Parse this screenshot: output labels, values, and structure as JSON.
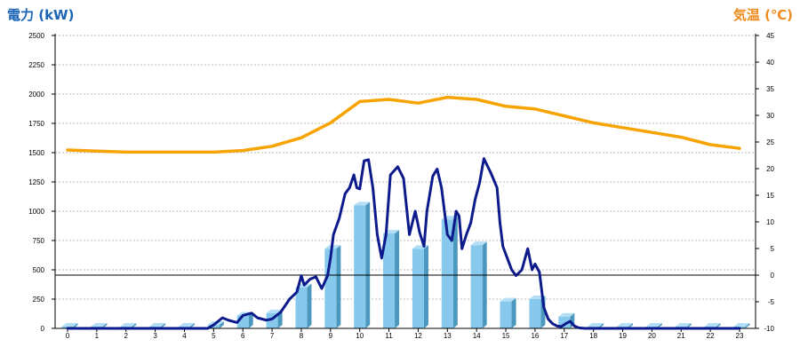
{
  "titles": {
    "left_axis": "電力 (kW)",
    "right_axis": "気温 (℃)"
  },
  "chart_data": {
    "type": "bar",
    "grid": true,
    "x": {
      "categories": [
        "0",
        "1",
        "2",
        "3",
        "4",
        "5",
        "6",
        "7",
        "8",
        "9",
        "10",
        "11",
        "12",
        "13",
        "14",
        "15",
        "16",
        "17",
        "18",
        "19",
        "20",
        "21",
        "22",
        "23"
      ]
    },
    "y_left": {
      "ylim": [
        0,
        2500
      ],
      "ticks": [
        0,
        250,
        500,
        750,
        1000,
        1250,
        1500,
        1750,
        2000,
        2250,
        2500
      ]
    },
    "y_right": {
      "ylim": [
        -10,
        45
      ],
      "ticks": [
        -10,
        -5,
        0,
        5,
        10,
        15,
        20,
        25,
        30,
        35,
        40,
        45
      ]
    },
    "hourly_bars": {
      "values": [
        0,
        0,
        0,
        0,
        0,
        30,
        110,
        130,
        350,
        680,
        1050,
        810,
        680,
        930,
        710,
        230,
        250,
        100,
        0,
        0,
        0,
        0,
        0,
        0
      ],
      "colors": {
        "front": "#86c9ec",
        "side": "#4b97bd",
        "top": "#b4def5"
      }
    },
    "power_line": {
      "color": "#0d1a8c",
      "points": [
        [
          0,
          0
        ],
        [
          1,
          0
        ],
        [
          2,
          0
        ],
        [
          3,
          0
        ],
        [
          4,
          0
        ],
        [
          4.8,
          0
        ],
        [
          5.0,
          30
        ],
        [
          5.3,
          90
        ],
        [
          5.5,
          70
        ],
        [
          5.8,
          50
        ],
        [
          6.0,
          110
        ],
        [
          6.3,
          130
        ],
        [
          6.5,
          90
        ],
        [
          6.8,
          70
        ],
        [
          7.0,
          80
        ],
        [
          7.3,
          140
        ],
        [
          7.6,
          250
        ],
        [
          7.85,
          310
        ],
        [
          8.0,
          450
        ],
        [
          8.1,
          370
        ],
        [
          8.3,
          420
        ],
        [
          8.5,
          440
        ],
        [
          8.7,
          340
        ],
        [
          8.9,
          450
        ],
        [
          9.0,
          600
        ],
        [
          9.1,
          800
        ],
        [
          9.3,
          940
        ],
        [
          9.5,
          1150
        ],
        [
          9.65,
          1200
        ],
        [
          9.8,
          1310
        ],
        [
          9.9,
          1200
        ],
        [
          10.0,
          1190
        ],
        [
          10.15,
          1430
        ],
        [
          10.3,
          1440
        ],
        [
          10.45,
          1200
        ],
        [
          10.6,
          800
        ],
        [
          10.75,
          600
        ],
        [
          10.9,
          800
        ],
        [
          11.05,
          1310
        ],
        [
          11.3,
          1380
        ],
        [
          11.5,
          1280
        ],
        [
          11.7,
          800
        ],
        [
          11.9,
          1000
        ],
        [
          12.05,
          820
        ],
        [
          12.2,
          700
        ],
        [
          12.3,
          1000
        ],
        [
          12.5,
          1300
        ],
        [
          12.65,
          1360
        ],
        [
          12.8,
          1200
        ],
        [
          13.0,
          800
        ],
        [
          13.15,
          750
        ],
        [
          13.3,
          1000
        ],
        [
          13.4,
          960
        ],
        [
          13.5,
          680
        ],
        [
          13.65,
          800
        ],
        [
          13.8,
          900
        ],
        [
          13.95,
          1100
        ],
        [
          14.1,
          1240
        ],
        [
          14.25,
          1450
        ],
        [
          14.5,
          1320
        ],
        [
          14.7,
          1200
        ],
        [
          14.8,
          900
        ],
        [
          14.9,
          700
        ],
        [
          15.05,
          600
        ],
        [
          15.2,
          500
        ],
        [
          15.35,
          450
        ],
        [
          15.55,
          500
        ],
        [
          15.75,
          680
        ],
        [
          15.9,
          500
        ],
        [
          16.0,
          550
        ],
        [
          16.15,
          480
        ],
        [
          16.3,
          180
        ],
        [
          16.45,
          80
        ],
        [
          16.6,
          40
        ],
        [
          16.75,
          20
        ],
        [
          16.9,
          15
        ],
        [
          17.05,
          40
        ],
        [
          17.2,
          60
        ],
        [
          17.35,
          20
        ],
        [
          17.5,
          5
        ],
        [
          17.7,
          0
        ],
        [
          18,
          0
        ],
        [
          19,
          0
        ],
        [
          20,
          0
        ],
        [
          21,
          0
        ],
        [
          22,
          0
        ],
        [
          23,
          0
        ]
      ]
    },
    "temperature_line": {
      "color": "#f7a300",
      "x": [
        0,
        1,
        2,
        3,
        4,
        5,
        6,
        7,
        8,
        9,
        10,
        11,
        12,
        13,
        14,
        15,
        16,
        17,
        18,
        19,
        20,
        21,
        22,
        23
      ],
      "values": [
        23.5,
        23.3,
        23.1,
        23.1,
        23.1,
        23.1,
        23.4,
        24.2,
        25.8,
        28.6,
        32.6,
        33.0,
        32.3,
        33.4,
        33.0,
        31.7,
        31.2,
        29.9,
        28.6,
        27.7,
        26.8,
        25.9,
        24.5,
        23.8
      ]
    }
  }
}
